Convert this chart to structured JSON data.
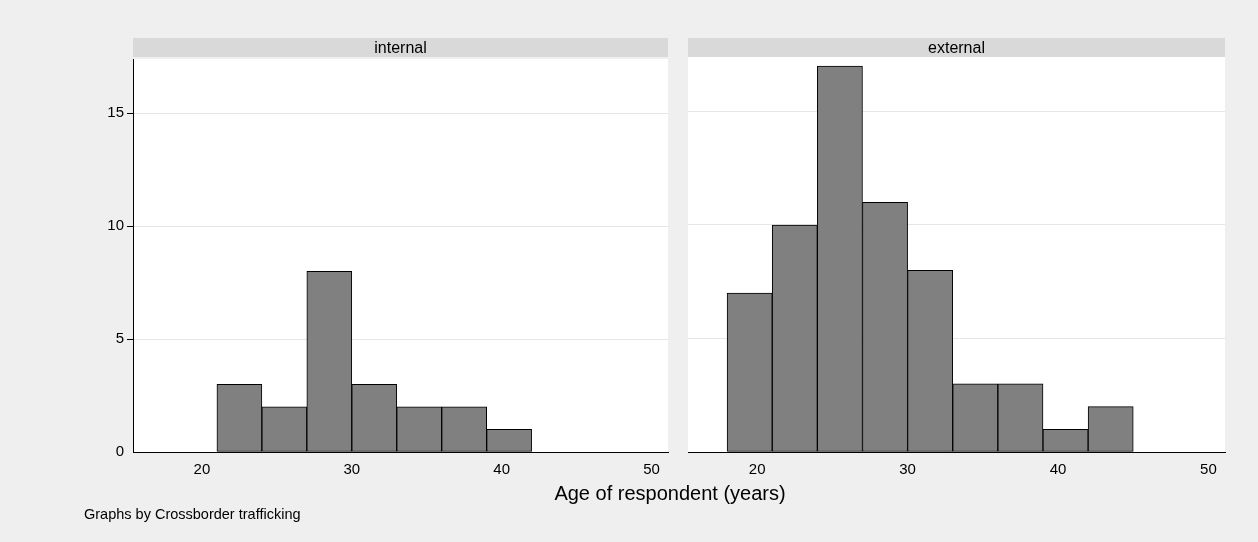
{
  "chart_data": [
    {
      "type": "histogram",
      "title": "internal",
      "xlabel": "Age of respondent (years)",
      "annotations": [
        "Graphs by Crossborder trafficking"
      ],
      "bins": [
        21,
        24,
        27,
        30,
        33,
        36,
        39,
        42
      ],
      "values": [
        3,
        2,
        8,
        3,
        2,
        2,
        1
      ],
      "color": "#808080",
      "xlim": [
        15.4,
        51.1
      ],
      "xticks": [
        20,
        30,
        40,
        50
      ],
      "ylim": [
        0,
        17.4
      ],
      "yticks": [
        0,
        5,
        10,
        15
      ],
      "grid": "y"
    },
    {
      "type": "histogram",
      "title": "external",
      "bins": [
        18,
        21,
        24,
        27,
        30,
        33,
        36,
        39,
        42,
        45
      ],
      "values": [
        7,
        10,
        17,
        11,
        8,
        3,
        3,
        1,
        2
      ],
      "color": "#808080",
      "xlim": [
        15.4,
        51.1
      ],
      "xticks": [
        20,
        30,
        40,
        50
      ],
      "ylim": [
        0,
        17.4
      ],
      "yticks": [
        0,
        5,
        10,
        15
      ],
      "grid": "y",
      "tick_labels": "x"
    }
  ]
}
